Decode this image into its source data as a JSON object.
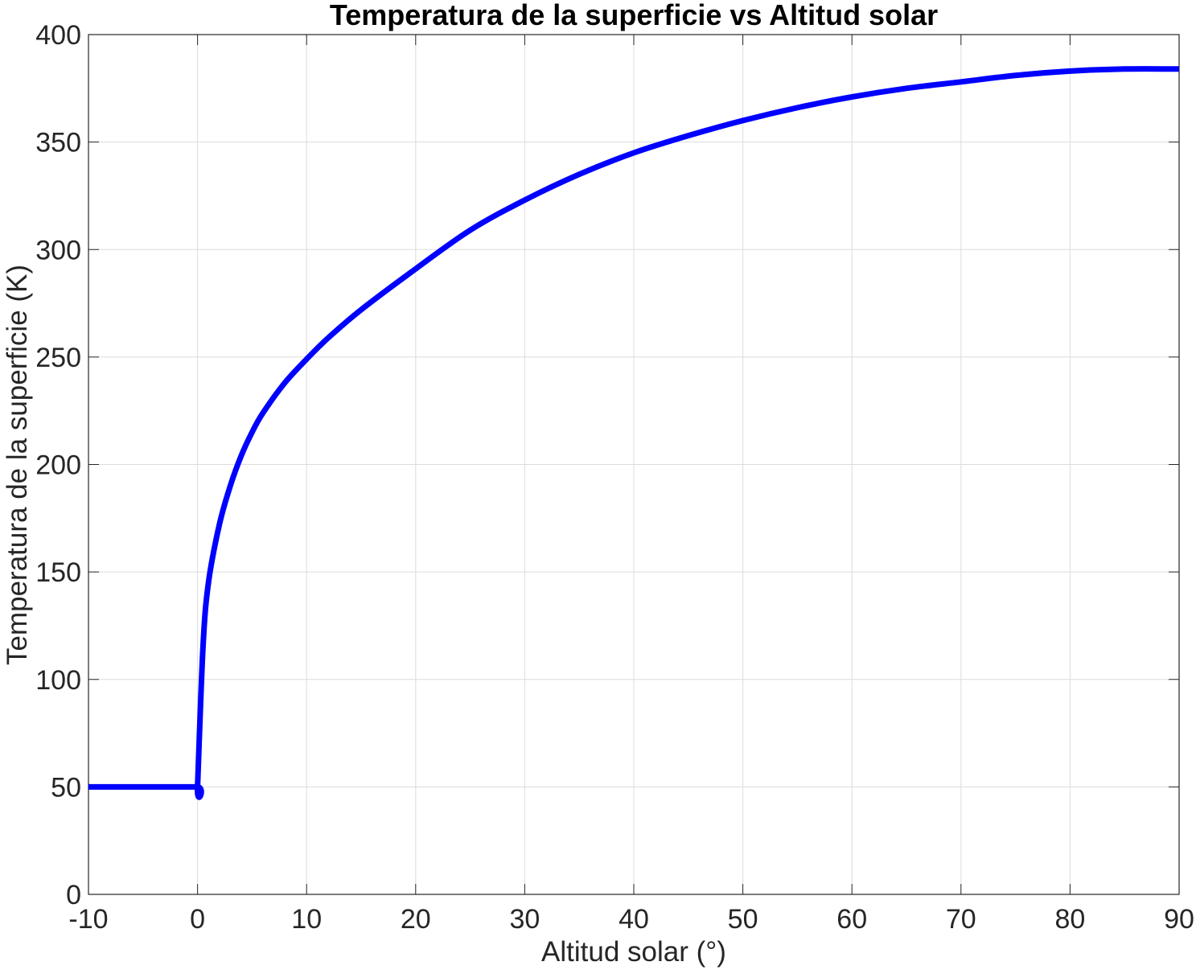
{
  "chart_data": {
    "type": "line",
    "title": "Temperatura de la superficie vs Altitud solar",
    "xlabel": "Altitud solar (°)",
    "ylabel": "Temperatura de la superficie (K)",
    "xlim": [
      -10,
      90
    ],
    "ylim": [
      0,
      400
    ],
    "xticks": [
      "-10",
      "0",
      "10",
      "20",
      "30",
      "40",
      "50",
      "60",
      "70",
      "80",
      "90"
    ],
    "yticks": [
      "0",
      "50",
      "100",
      "150",
      "200",
      "250",
      "300",
      "350",
      "400"
    ],
    "grid": true,
    "series": [
      {
        "color": "#0000ff",
        "x": [
          -10,
          -5,
          -0.01,
          0,
          0.5,
          1,
          2,
          3,
          4,
          5,
          6,
          8,
          10,
          12,
          15,
          20,
          25,
          30,
          35,
          40,
          45,
          50,
          55,
          60,
          65,
          70,
          75,
          80,
          85,
          90
        ],
        "y": [
          50,
          50,
          50,
          50,
          115,
          145,
          172,
          190,
          204,
          215,
          224,
          238,
          249,
          259,
          272,
          291,
          309,
          323,
          335,
          345,
          353,
          360,
          366,
          371,
          375,
          378,
          381,
          383,
          384,
          384
        ]
      }
    ]
  }
}
